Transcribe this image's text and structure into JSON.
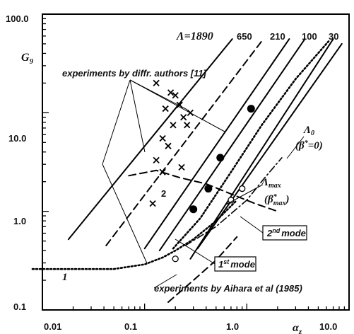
{
  "chart_data": {
    "type": "line",
    "scale": {
      "x": "log",
      "y": "log"
    },
    "xlim": [
      0.01,
      10.0
    ],
    "ylim": [
      0.1,
      100.0
    ],
    "x_ticks": [
      "0.01",
      "0.1",
      "1.0",
      "10.0"
    ],
    "y_ticks": [
      "100.0",
      "10.0",
      "1.0",
      "0.1"
    ],
    "xlabel": "α",
    "xlabel_sub": "z",
    "ylabel": "G",
    "ylabel_sub": "9",
    "lambda_prefix": "Λ=",
    "lambda_values": [
      "1890",
      "650",
      "210",
      "100",
      "30"
    ],
    "series": [
      {
        "name": "1890",
        "style": "solid",
        "x": [
          0.018,
          0.72
        ],
        "y": [
          0.52,
          56
        ]
      },
      {
        "name": "650",
        "style": "dashed",
        "x": [
          0.042,
          1.45
        ],
        "y": [
          0.45,
          56
        ]
      },
      {
        "name": "210",
        "style": "solid",
        "x": [
          0.1,
          2.6
        ],
        "y": [
          0.42,
          56
        ]
      },
      {
        "name": "100",
        "style": "solid",
        "x": [
          0.14,
          3.7
        ],
        "y": [
          0.4,
          56
        ]
      },
      {
        "name": "30",
        "style": "solid",
        "x": [
          0.28,
          7.0
        ],
        "y": [
          0.33,
          56
        ]
      },
      {
        "name": "Λ0",
        "style": "solid",
        "x": [
          0.33,
          8.5
        ],
        "y": [
          0.42,
          50
        ]
      },
      {
        "name": "Λmax",
        "style": "dotted",
        "x": [
          0.19,
          0.35,
          0.7,
          1.4,
          3.0,
          6.5
        ],
        "y": [
          0.42,
          0.85,
          2.5,
          7.5,
          22,
          55
        ]
      },
      {
        "name": "1",
        "style": "dotted",
        "x": [
          0.008,
          0.05,
          0.1,
          0.15,
          0.2,
          0.3,
          0.5,
          0.8
        ],
        "y": [
          0.26,
          0.26,
          0.29,
          0.34,
          0.4,
          0.52,
          0.8,
          1.3
        ]
      },
      {
        "name": "2",
        "style": "dashed",
        "x": [
          0.07,
          0.13,
          0.22,
          0.4,
          0.7,
          1.2,
          2.0
        ],
        "y": [
          2.3,
          2.6,
          2.2,
          1.9,
          1.5,
          1.2,
          1.0
        ]
      },
      {
        "name": "1st mode",
        "style": "dashdot",
        "x": [
          0.25,
          0.5,
          1.0,
          1.5,
          2.2
        ],
        "y": [
          0.45,
          0.7,
          1.3,
          2.2,
          3.5
        ]
      },
      {
        "name": "Aihara",
        "style": "dashed",
        "x": [
          0.17,
          0.3,
          0.5,
          0.8
        ],
        "y": [
          0.12,
          0.2,
          0.32,
          0.55
        ]
      }
    ],
    "markers_x": {
      "name": "experiments by diffr. authors [11]",
      "x": [
        0.13,
        0.18,
        0.16,
        0.2,
        0.22,
        0.15,
        0.19,
        0.24,
        0.26,
        0.17,
        0.13,
        0.23,
        0.15,
        0.28,
        0.12
      ],
      "y": [
        20,
        16,
        11,
        15,
        12,
        5.5,
        7.5,
        9,
        7.5,
        4.6,
        3.3,
        2.8,
        2.5,
        10,
        1.2
      ]
    },
    "markers_filled": {
      "x": [
        0.3,
        0.42,
        0.55,
        1.1
      ],
      "y": [
        1.05,
        1.7,
        3.5,
        11
      ]
    },
    "markers_open": {
      "x": [
        0.2,
        0.7,
        0.9
      ],
      "y": [
        0.33,
        1.3,
        1.7
      ]
    },
    "annotations": {
      "exp_diffr": "experiments by diffr. authors [11]",
      "lambda0": "Λ",
      "lambda0_sub": "0",
      "beta0_open": "(β",
      "beta0_sup": "*",
      "beta0_close": "=0)",
      "lambdamax": "Λ",
      "lambdamax_sub": "max",
      "betamax_open": "(β",
      "betamax_sup": "*",
      "betamax_sub": "max",
      "betamax_close": ")",
      "mode2_num": "2",
      "mode2_sup": "nd",
      "mode2_word": "mode",
      "mode1_num": "1",
      "mode1_sup": "st",
      "mode1_word": "mode",
      "label_1": "1",
      "label_2": "2",
      "aihara": "experiments by Aihara et al (1985)"
    }
  }
}
